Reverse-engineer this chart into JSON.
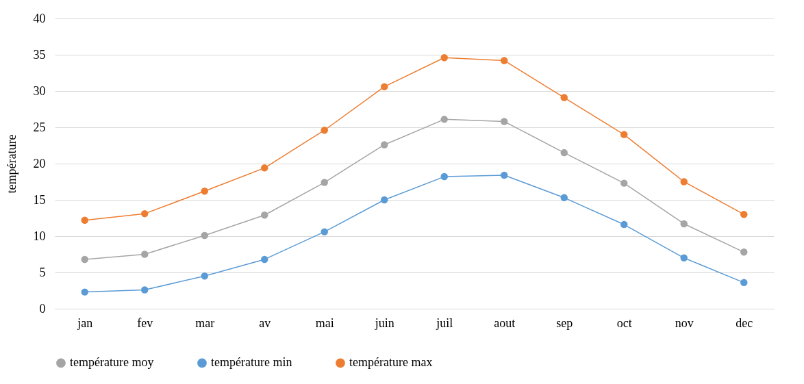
{
  "chart_data": {
    "type": "line",
    "ylabel": "température",
    "categories": [
      "jan",
      "fev",
      "mar",
      "av",
      "mai",
      "juin",
      "juil",
      "aout",
      "sep",
      "oct",
      "nov",
      "dec"
    ],
    "series": [
      {
        "name": "température moy",
        "color": "#a5a5a5",
        "values": [
          6.8,
          7.5,
          10.1,
          12.9,
          17.4,
          22.6,
          26.1,
          25.8,
          21.5,
          17.3,
          11.7,
          7.8
        ]
      },
      {
        "name": "température min",
        "color": "#5b9bd5",
        "values": [
          2.3,
          2.6,
          4.5,
          6.8,
          10.6,
          15.0,
          18.2,
          18.4,
          15.3,
          11.6,
          7.0,
          3.6
        ]
      },
      {
        "name": "température max",
        "color": "#ed7d31",
        "values": [
          12.2,
          13.1,
          16.2,
          19.4,
          24.6,
          30.6,
          34.6,
          34.2,
          29.1,
          24.0,
          17.5,
          13.0
        ]
      }
    ],
    "ylim": [
      0,
      40
    ],
    "yticks": [
      0,
      5,
      10,
      15,
      20,
      25,
      30,
      35,
      40
    ],
    "grid": "y",
    "legend": "bottom",
    "marker": "circle",
    "line_style": "solid"
  }
}
